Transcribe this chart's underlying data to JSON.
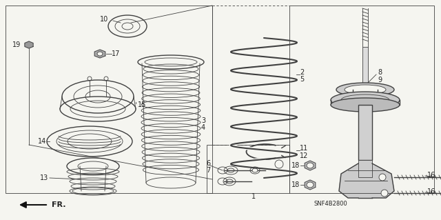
{
  "bg_color": "#f5f5f0",
  "diagram_code": "SNF4B2800",
  "line_color": "#404040",
  "text_color": "#222222",
  "fig_width": 6.4,
  "fig_height": 3.19
}
